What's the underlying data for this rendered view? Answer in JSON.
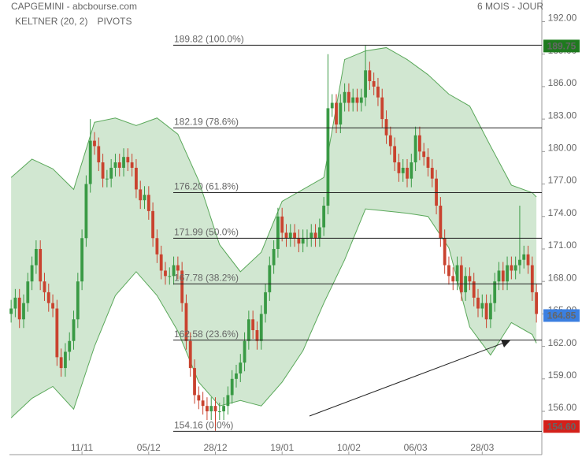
{
  "chart_data": {
    "type": "candlestick",
    "title": "CAPGEMINI - abcbourse.com",
    "period": "6 MOIS - JOUR",
    "indicators": [
      {
        "name": "KELTNER (20, 2)",
        "color": "#3a9a45"
      },
      {
        "name": "PIVOTS",
        "color": "#555555"
      }
    ],
    "candle_colors": {
      "up": "#3a9a45",
      "down": "#c9432f"
    },
    "open": [
      165.0,
      165.5,
      166.5,
      164.5,
      166.0,
      168.0,
      169.5,
      171.0,
      168.0,
      167.0,
      166.0,
      165.5,
      161.0,
      160.0,
      161.5,
      162.5,
      164.5,
      168.0,
      172.0,
      177.0,
      181.0,
      180.5,
      179.0,
      177.5,
      177.5,
      178.5,
      179.0,
      178.5,
      179.5,
      179.0,
      178.5,
      176.5,
      175.5,
      176.0,
      174.5,
      172.0,
      170.5,
      169.0,
      168.5,
      168.5,
      169.5,
      169.0,
      166.0,
      162.5,
      160.0,
      157.5,
      157.0,
      156.5,
      156.0,
      156.5,
      156.0,
      156.0,
      156.5,
      157.5,
      159.0,
      159.5,
      160.5,
      162.5,
      164.5,
      163.5,
      162.5,
      165.0,
      167.0,
      169.5,
      171.0,
      174.0,
      172.5,
      172.0,
      172.5,
      172.0,
      171.5,
      172.0,
      172.0,
      172.5,
      172.0,
      173.0,
      175.0,
      184.0,
      184.5,
      182.5,
      184.5,
      185.5,
      184.5,
      185.0,
      184.5,
      185.0,
      187.5,
      186.5,
      186.0,
      185.0,
      183.0,
      181.5,
      180.5,
      179.0,
      178.0,
      178.5,
      177.5,
      179.0,
      181.5,
      180.0,
      179.5,
      178.5,
      177.5,
      175.0,
      172.0,
      169.5,
      168.5,
      168.0,
      169.5,
      167.0,
      168.5,
      168.0,
      166.5,
      165.5,
      166.0,
      164.5,
      166.0,
      168.0,
      169.0,
      168.0,
      169.5,
      169.0,
      169.5,
      170.0,
      170.5,
      169.5,
      167.0
    ],
    "high": [
      166.3,
      167.3,
      167.3,
      166.8,
      168.8,
      170.3,
      171.8,
      171.8,
      168.8,
      167.8,
      166.8,
      166.3,
      161.8,
      162.3,
      163.3,
      165.3,
      168.8,
      172.8,
      177.8,
      183.0,
      181.8,
      181.3,
      179.8,
      178.3,
      179.3,
      179.8,
      179.8,
      180.3,
      180.3,
      179.8,
      179.3,
      177.3,
      176.8,
      176.8,
      175.3,
      172.8,
      171.3,
      169.8,
      169.3,
      170.3,
      170.3,
      169.8,
      166.8,
      163.3,
      160.8,
      158.3,
      157.8,
      157.3,
      157.3,
      157.3,
      156.8,
      157.3,
      158.3,
      159.8,
      160.3,
      161.3,
      163.3,
      165.3,
      165.3,
      164.3,
      165.8,
      167.8,
      170.3,
      171.8,
      174.8,
      174.8,
      173.3,
      173.3,
      173.3,
      172.8,
      172.8,
      172.8,
      173.3,
      173.3,
      173.8,
      175.8,
      189.0,
      185.3,
      185.3,
      185.3,
      186.3,
      186.3,
      185.8,
      185.8,
      185.8,
      189.8,
      188.3,
      187.3,
      186.8,
      185.8,
      183.8,
      182.3,
      181.3,
      179.8,
      179.3,
      179.3,
      179.8,
      182.3,
      182.3,
      180.8,
      180.3,
      179.3,
      178.3,
      175.8,
      172.8,
      170.3,
      169.3,
      170.3,
      170.3,
      169.3,
      169.3,
      168.8,
      167.3,
      166.8,
      166.8,
      166.8,
      168.8,
      169.8,
      169.8,
      170.3,
      170.3,
      170.3,
      175.0,
      171.3,
      171.3,
      170.3,
      167.8
    ],
    "low": [
      164.2,
      164.7,
      163.7,
      163.7,
      165.2,
      167.2,
      168.7,
      167.2,
      166.2,
      165.2,
      164.7,
      160.2,
      159.2,
      159.2,
      160.7,
      161.7,
      163.7,
      167.2,
      171.2,
      176.2,
      179.7,
      178.2,
      176.7,
      176.7,
      176.7,
      177.7,
      177.7,
      177.7,
      178.2,
      177.7,
      175.7,
      174.7,
      174.7,
      173.7,
      171.2,
      169.7,
      168.2,
      167.7,
      167.7,
      167.7,
      168.2,
      165.2,
      161.7,
      159.2,
      156.7,
      156.2,
      155.7,
      155.2,
      155.2,
      154.2,
      155.2,
      155.2,
      155.7,
      156.7,
      158.2,
      158.7,
      159.7,
      161.7,
      162.7,
      161.7,
      161.7,
      164.2,
      166.2,
      168.7,
      170.2,
      171.7,
      171.2,
      171.2,
      171.2,
      170.7,
      170.7,
      171.2,
      171.2,
      171.2,
      171.2,
      172.2,
      174.2,
      183.2,
      181.7,
      181.7,
      183.7,
      183.7,
      183.7,
      183.7,
      183.7,
      184.2,
      185.7,
      185.2,
      184.2,
      182.2,
      180.7,
      179.7,
      178.2,
      177.2,
      177.2,
      176.7,
      176.7,
      178.2,
      179.2,
      178.7,
      177.7,
      176.7,
      174.2,
      171.2,
      168.7,
      167.7,
      167.2,
      167.2,
      166.2,
      166.2,
      167.2,
      165.7,
      164.7,
      164.7,
      163.7,
      163.7,
      165.2,
      167.2,
      167.2,
      167.2,
      168.2,
      168.2,
      168.7,
      169.2,
      168.7,
      166.2,
      164.2
    ],
    "close": [
      165.5,
      166.5,
      164.5,
      166.0,
      168.0,
      169.5,
      171.0,
      168.0,
      167.0,
      166.0,
      165.5,
      161.0,
      160.0,
      161.5,
      162.5,
      164.5,
      168.0,
      172.0,
      177.0,
      181.0,
      180.5,
      179.0,
      177.5,
      177.5,
      178.5,
      179.0,
      178.5,
      179.5,
      179.0,
      178.5,
      176.5,
      175.5,
      176.0,
      174.5,
      172.0,
      170.5,
      169.0,
      168.5,
      168.5,
      169.5,
      169.0,
      166.0,
      162.5,
      160.0,
      157.5,
      157.0,
      156.5,
      156.0,
      156.5,
      156.0,
      156.0,
      156.5,
      157.5,
      159.0,
      159.5,
      160.5,
      162.5,
      164.5,
      163.5,
      162.5,
      165.0,
      167.0,
      169.5,
      171.0,
      174.0,
      172.5,
      172.0,
      172.5,
      172.0,
      171.5,
      172.0,
      172.0,
      172.5,
      172.0,
      173.0,
      175.0,
      184.0,
      184.5,
      182.5,
      184.5,
      185.5,
      184.5,
      185.0,
      184.5,
      185.0,
      187.5,
      186.5,
      186.0,
      185.0,
      183.0,
      181.5,
      180.5,
      179.0,
      178.0,
      178.5,
      177.5,
      179.0,
      181.5,
      180.0,
      179.5,
      178.5,
      177.5,
      175.0,
      172.0,
      169.5,
      168.5,
      168.0,
      169.5,
      167.0,
      168.5,
      168.0,
      166.5,
      165.5,
      166.0,
      164.5,
      166.0,
      168.0,
      169.0,
      168.0,
      169.5,
      169.0,
      169.5,
      170.0,
      170.5,
      169.5,
      167.0,
      165.0
    ],
    "keltner": {
      "color": "#5aa85a",
      "x": [
        0,
        5,
        10,
        15,
        20,
        25,
        30,
        35,
        40,
        45,
        50,
        55,
        60,
        65,
        70,
        75,
        80,
        85,
        90,
        95,
        100,
        105,
        110,
        115,
        120,
        125,
        126
      ],
      "upper": [
        177.6,
        179.3,
        178.4,
        176.5,
        182.7,
        183.1,
        182.4,
        183.1,
        181.6,
        177.3,
        171.4,
        168.9,
        170.7,
        175.4,
        176.5,
        177.6,
        188.5,
        189.3,
        189.6,
        188.5,
        187.1,
        185.3,
        184.2,
        180.5,
        176.9,
        176.2,
        175.8
      ],
      "lower": [
        155.4,
        157.2,
        158.3,
        156.2,
        162.0,
        166.7,
        168.9,
        166.7,
        163.4,
        158.7,
        156.5,
        157.0,
        156.5,
        158.7,
        161.6,
        166.0,
        170.0,
        174.7,
        174.5,
        174.3,
        174.0,
        171.1,
        163.8,
        161.2,
        164.2,
        163.1,
        162.3
      ]
    },
    "fib_levels": [
      {
        "value": 189.82,
        "label": "189.82  (100.0%)"
      },
      {
        "value": 182.19,
        "label": "182.19  (78.6%)"
      },
      {
        "value": 176.2,
        "label": "176.20  (61.8%)"
      },
      {
        "value": 171.99,
        "label": "171.99  (50.0%)"
      },
      {
        "value": 167.78,
        "label": "167.78  (38.2%)"
      },
      {
        "value": 162.58,
        "label": "162.58  (23.6%)"
      },
      {
        "value": 154.16,
        "label": "154.16  (0.0%)"
      }
    ],
    "price_tags": [
      {
        "value": 189.75,
        "label": "189.75",
        "color": "#1e7a1e"
      },
      {
        "value": 164.85,
        "label": "164.85",
        "color": "#3b7fe0"
      },
      {
        "value": 154.6,
        "label": "154.60",
        "color": "#d4201a"
      }
    ],
    "xlim": [
      -0.4,
      127.3
    ],
    "xticks": [
      {
        "value": 17,
        "label": "11/11"
      },
      {
        "value": 33,
        "label": "05/12"
      },
      {
        "value": 49,
        "label": "28/12"
      },
      {
        "value": 65,
        "label": "19/01"
      },
      {
        "value": 81,
        "label": "10/02"
      },
      {
        "value": 97,
        "label": "06/03"
      },
      {
        "value": 113,
        "label": "28/03"
      }
    ],
    "ylim": [
      152,
      194
    ],
    "yticks": [
      {
        "value": 156,
        "label": "156.00"
      },
      {
        "value": 159,
        "label": "159.00"
      },
      {
        "value": 162,
        "label": "162.00"
      },
      {
        "value": 165,
        "label": "165.00"
      },
      {
        "value": 168,
        "label": "168.00"
      },
      {
        "value": 171,
        "label": "171.00"
      },
      {
        "value": 174,
        "label": "174.00"
      },
      {
        "value": 177,
        "label": "177.00"
      },
      {
        "value": 180,
        "label": "180.00"
      },
      {
        "value": 183,
        "label": "183.00"
      },
      {
        "value": 186,
        "label": "186.00"
      },
      {
        "value": 189,
        "label": "189.00"
      },
      {
        "value": 192,
        "label": "192.00"
      }
    ]
  }
}
